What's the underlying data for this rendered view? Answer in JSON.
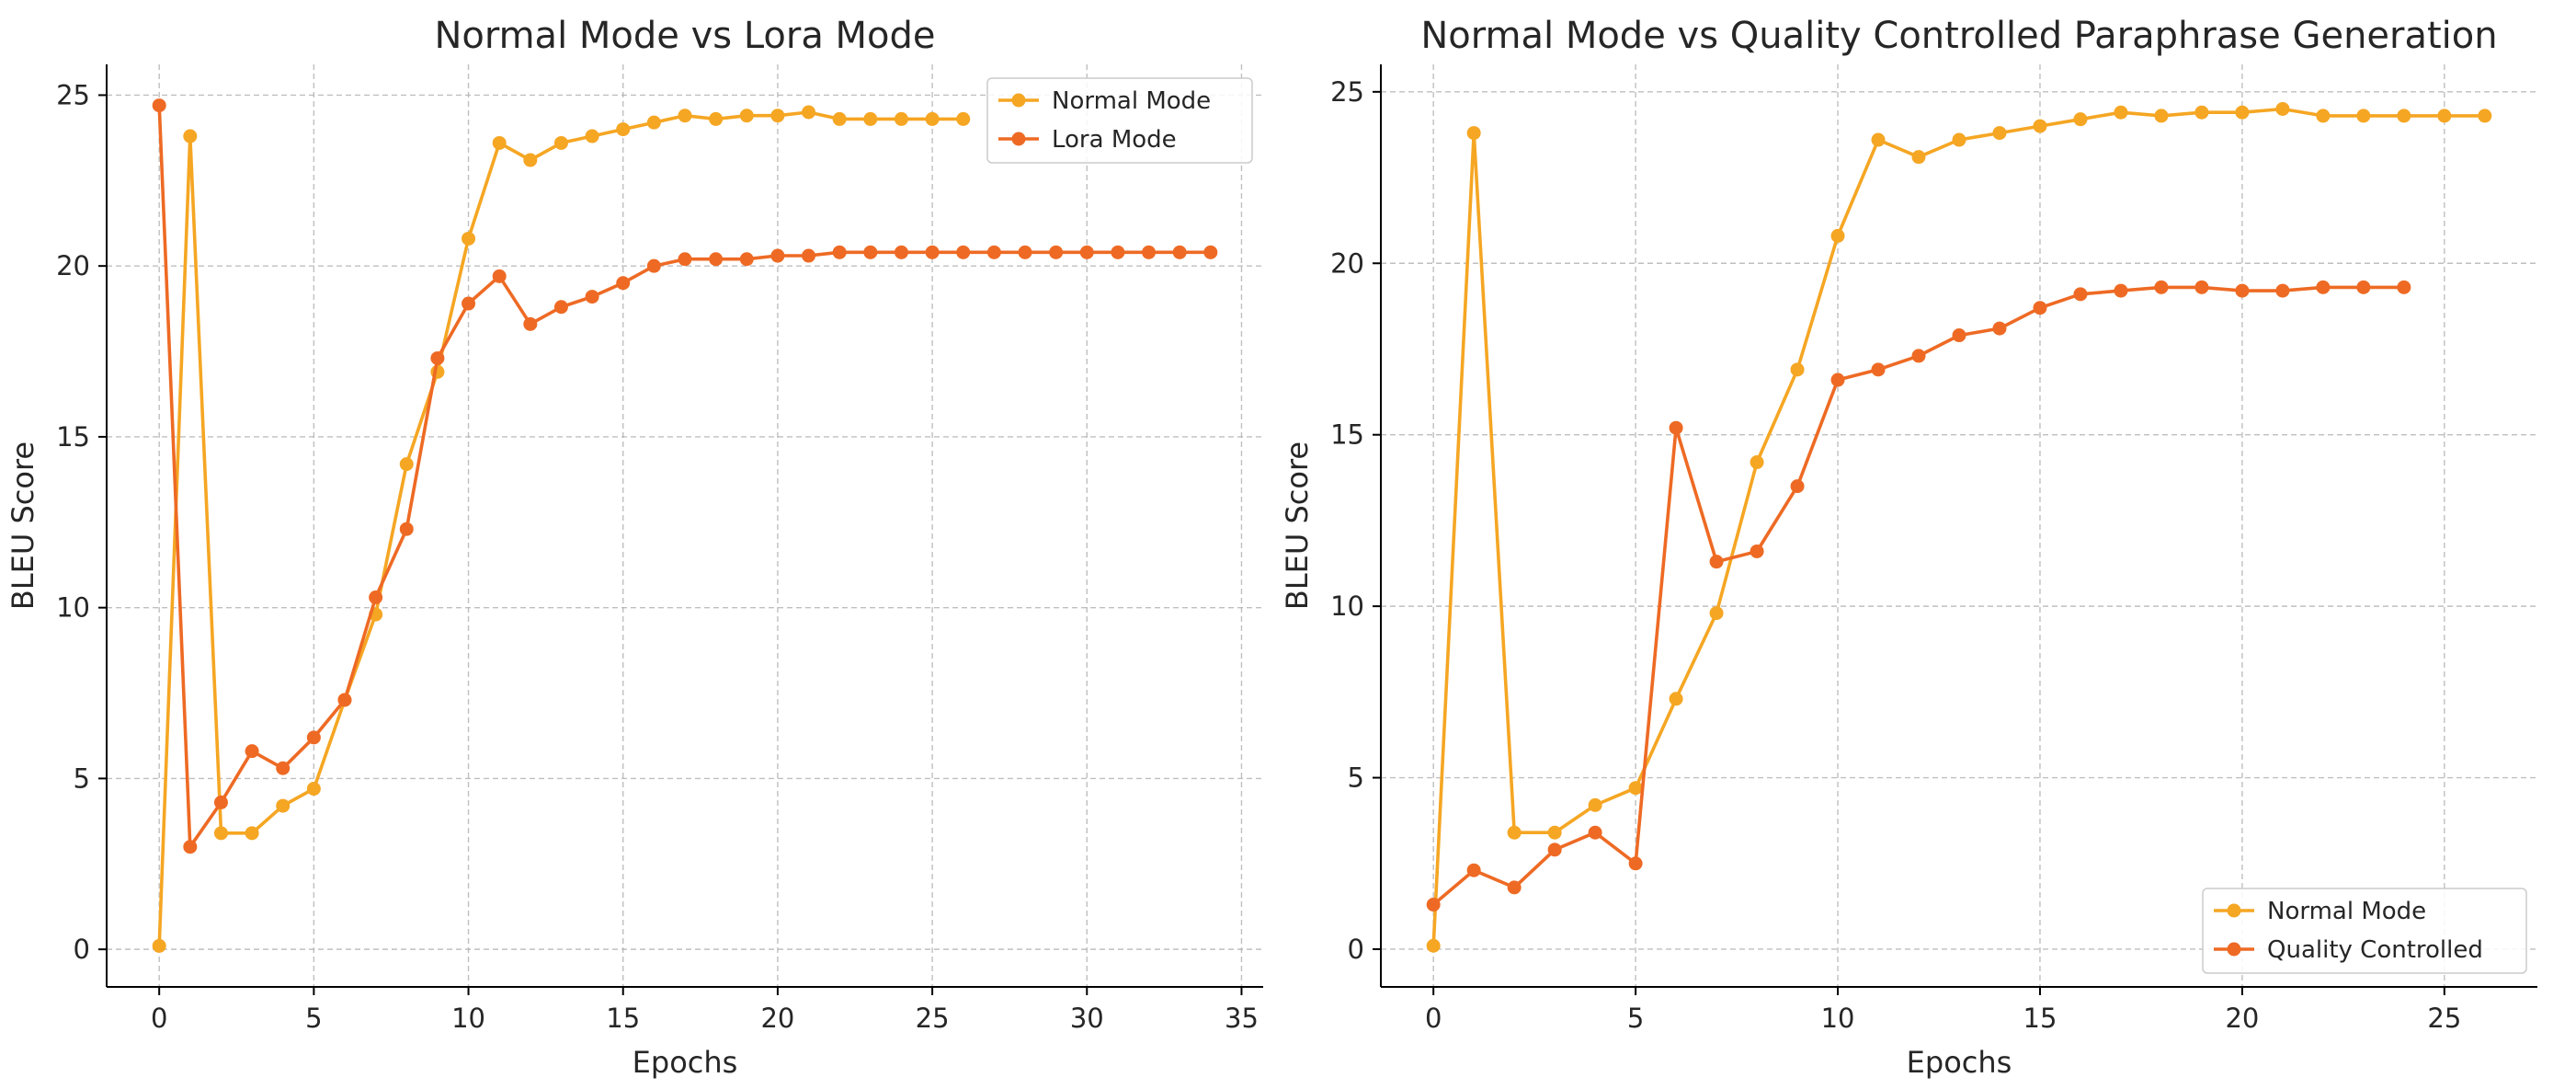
{
  "chart_data": [
    {
      "type": "line",
      "title": "Normal Mode vs Lora Mode",
      "xlabel": "Epochs",
      "ylabel": "BLEU Score",
      "xlim": [
        -1.7,
        35.7
      ],
      "ylim": [
        -1.1,
        25.9
      ],
      "xticks": [
        0,
        5,
        10,
        15,
        20,
        25,
        30,
        35
      ],
      "yticks": [
        0,
        5,
        10,
        15,
        20,
        25
      ],
      "grid": true,
      "legend_position": "top-right",
      "series": [
        {
          "name": "Normal Mode",
          "color": "#F5A623",
          "x": [
            0,
            1,
            2,
            3,
            4,
            5,
            6,
            7,
            8,
            9,
            10,
            11,
            12,
            13,
            14,
            15,
            16,
            17,
            18,
            19,
            20,
            21,
            22,
            23,
            24,
            25,
            26
          ],
          "y": [
            0.1,
            23.8,
            3.4,
            3.4,
            4.2,
            4.7,
            7.3,
            9.8,
            14.2,
            16.9,
            20.8,
            23.6,
            23.1,
            23.6,
            23.8,
            24.0,
            24.2,
            24.4,
            24.3,
            24.4,
            24.4,
            24.5,
            24.3,
            24.3,
            24.3,
            24.3,
            24.3
          ]
        },
        {
          "name": "Lora Mode",
          "color": "#EE6A24",
          "x": [
            0,
            1,
            2,
            3,
            4,
            5,
            6,
            7,
            8,
            9,
            10,
            11,
            12,
            13,
            14,
            15,
            16,
            17,
            18,
            19,
            20,
            21,
            22,
            23,
            24,
            25,
            26,
            27,
            28,
            29,
            30,
            31,
            32,
            33,
            34
          ],
          "y": [
            24.7,
            3.0,
            4.3,
            5.8,
            5.3,
            6.2,
            7.3,
            10.3,
            12.3,
            17.3,
            18.9,
            19.7,
            18.3,
            18.8,
            19.1,
            19.5,
            20.0,
            20.2,
            20.2,
            20.2,
            20.3,
            20.3,
            20.4,
            20.4,
            20.4,
            20.4,
            20.4,
            20.4,
            20.4,
            20.4,
            20.4,
            20.4,
            20.4,
            20.4,
            20.4
          ]
        }
      ]
    },
    {
      "type": "line",
      "title": "Normal Mode vs Quality Controlled Paraphrase Generation",
      "xlabel": "Epochs",
      "ylabel": "BLEU Score",
      "xlim": [
        -1.3,
        27.3
      ],
      "ylim": [
        -1.1,
        25.8
      ],
      "xticks": [
        0,
        5,
        10,
        15,
        20,
        25
      ],
      "yticks": [
        0,
        5,
        10,
        15,
        20,
        25
      ],
      "grid": true,
      "legend_position": "bottom-right",
      "series": [
        {
          "name": "Normal Mode",
          "color": "#F5A623",
          "x": [
            0,
            1,
            2,
            3,
            4,
            5,
            6,
            7,
            8,
            9,
            10,
            11,
            12,
            13,
            14,
            15,
            16,
            17,
            18,
            19,
            20,
            21,
            22,
            23,
            24,
            25,
            26
          ],
          "y": [
            0.1,
            23.8,
            3.4,
            3.4,
            4.2,
            4.7,
            7.3,
            9.8,
            14.2,
            16.9,
            20.8,
            23.6,
            23.1,
            23.6,
            23.8,
            24.0,
            24.2,
            24.4,
            24.3,
            24.4,
            24.4,
            24.5,
            24.3,
            24.3,
            24.3,
            24.3,
            24.3
          ]
        },
        {
          "name": "Quality Controlled",
          "color": "#EE6A24",
          "x": [
            0,
            1,
            2,
            3,
            4,
            5,
            6,
            7,
            8,
            9,
            10,
            11,
            12,
            13,
            14,
            15,
            16,
            17,
            18,
            19,
            20,
            21,
            22,
            23,
            24
          ],
          "y": [
            1.3,
            2.3,
            1.8,
            2.9,
            3.4,
            2.5,
            15.2,
            11.3,
            11.6,
            13.5,
            16.6,
            16.9,
            17.3,
            17.9,
            18.1,
            18.7,
            19.1,
            19.2,
            19.3,
            19.3,
            19.2,
            19.2,
            19.3,
            19.3,
            19.3
          ]
        }
      ]
    }
  ]
}
